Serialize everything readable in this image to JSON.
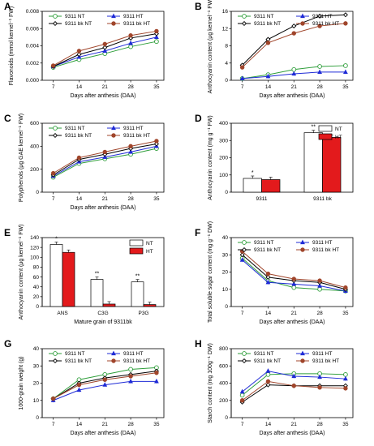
{
  "figure": {
    "panels": [
      {
        "id": "A",
        "type": "line",
        "ylabel": "Flavonoids (mmol kernel⁻¹ FW)",
        "xlabel": "Days after anthesis (DAA)",
        "x": [
          7,
          14,
          21,
          28,
          35
        ],
        "ylim": [
          0,
          0.008
        ],
        "yticks": [
          0,
          0.002,
          0.004,
          0.006,
          0.008
        ],
        "yticklabels": [
          "0.000",
          "0.002",
          "0.004",
          "0.006",
          "0.008"
        ],
        "series": [
          {
            "name": "9311 NT",
            "color": "#2e9e3a",
            "marker": "circle-open",
            "values": [
              0.0015,
              0.0024,
              0.0031,
              0.0039,
              0.0045
            ]
          },
          {
            "name": "9311 HT",
            "color": "#1f2bd6",
            "marker": "triangle",
            "values": [
              0.0016,
              0.0027,
              0.0034,
              0.0043,
              0.005
            ]
          },
          {
            "name": "9311 bk NT",
            "color": "#000000",
            "marker": "diamond-open",
            "values": [
              0.0016,
              0.003,
              0.0038,
              0.0049,
              0.0054
            ]
          },
          {
            "name": "9311 bk HT",
            "color": "#a0452b",
            "marker": "circle",
            "values": [
              0.0017,
              0.0034,
              0.0042,
              0.0052,
              0.0057
            ]
          }
        ]
      },
      {
        "id": "B",
        "type": "line",
        "ylabel": "Anthocyanin content (μg kernel⁻¹ FW)",
        "xlabel": "Days after anthesis (DAA)",
        "x": [
          7,
          14,
          21,
          28,
          35
        ],
        "ylim": [
          0,
          16
        ],
        "yticks": [
          0,
          4,
          8,
          12,
          16
        ],
        "yticklabels": [
          "0",
          "4",
          "8",
          "12",
          "16"
        ],
        "series": [
          {
            "name": "9311 NT",
            "color": "#2e9e3a",
            "marker": "circle-open",
            "values": [
              0.4,
              1.3,
              2.5,
              3.2,
              3.4
            ]
          },
          {
            "name": "9311 HT",
            "color": "#1f2bd6",
            "marker": "triangle",
            "values": [
              0.4,
              0.9,
              1.5,
              1.9,
              1.9
            ]
          },
          {
            "name": "9311 bk NT",
            "color": "#000000",
            "marker": "diamond-open",
            "values": [
              3.5,
              9.5,
              12.6,
              14.9,
              15.2
            ]
          },
          {
            "name": "9311 bk HT",
            "color": "#a0452b",
            "marker": "circle",
            "values": [
              3.0,
              8.7,
              10.9,
              12.6,
              13.2
            ]
          }
        ]
      },
      {
        "id": "C",
        "type": "line",
        "ylabel": "Polyphenols (μg GAE kernel⁻¹ FW)",
        "xlabel": "Days after anthesis (DAA)",
        "x": [
          7,
          14,
          21,
          28,
          35
        ],
        "ylim": [
          0,
          600
        ],
        "yticks": [
          0,
          200,
          400,
          600
        ],
        "yticklabels": [
          "0",
          "200",
          "400",
          "600"
        ],
        "series": [
          {
            "name": "9311 NT",
            "color": "#2e9e3a",
            "marker": "circle-open",
            "values": [
              130,
              250,
              290,
              330,
              380
            ]
          },
          {
            "name": "9311 HT",
            "color": "#1f2bd6",
            "marker": "triangle",
            "values": [
              140,
              265,
              305,
              350,
              400
            ]
          },
          {
            "name": "9311 bk NT",
            "color": "#000000",
            "marker": "diamond-open",
            "values": [
              150,
              285,
              330,
              380,
              420
            ]
          },
          {
            "name": "9311 bk HT",
            "color": "#a0452b",
            "marker": "circle",
            "values": [
              165,
              300,
              350,
              400,
              445
            ]
          }
        ]
      },
      {
        "id": "D",
        "type": "bar",
        "ylabel": "Anthocyanin content (mg g⁻¹ FW)",
        "categories": [
          "9311",
          "9311 bk"
        ],
        "ylim": [
          0,
          400
        ],
        "yticks": [
          0,
          100,
          200,
          300,
          400
        ],
        "yticklabels": [
          "0",
          "100",
          "200",
          "300",
          "400"
        ],
        "series": [
          {
            "name": "NT",
            "color": "#ffffff",
            "values": [
              80,
              345
            ]
          },
          {
            "name": "HT",
            "color": "#e31a1c",
            "values": [
              73,
              318
            ]
          }
        ],
        "annotations": [
          "*",
          "**"
        ]
      },
      {
        "id": "E",
        "type": "bar",
        "ylabel": "Anthocyanin content (μg kernel⁻¹ FW)",
        "xlabel": "Mature grain of 9311bk",
        "categories": [
          "ANS",
          "C3G",
          "P3G"
        ],
        "ylim": [
          0,
          140
        ],
        "yticks": [
          0,
          20,
          40,
          60,
          80,
          100,
          120,
          140
        ],
        "yticklabels": [
          "0",
          "20",
          "40",
          "60",
          "80",
          "100",
          "120",
          "140"
        ],
        "series": [
          {
            "name": "NT",
            "color": "#ffffff",
            "values": [
              126,
              55,
              50
            ]
          },
          {
            "name": "HT",
            "color": "#e31a1c",
            "values": [
              110,
              5,
              4
            ]
          }
        ],
        "annotations": [
          "*",
          "**",
          "**"
        ]
      },
      {
        "id": "F",
        "type": "line",
        "ylabel": "Total soluble sugar content (mg g⁻¹ DW)",
        "xlabel": "Days after anthesis (DAA)",
        "x": [
          7,
          14,
          21,
          28,
          35
        ],
        "ylim": [
          0,
          40
        ],
        "yticks": [
          0,
          10,
          20,
          30,
          40
        ],
        "yticklabels": [
          "0",
          "10",
          "20",
          "30",
          "40"
        ],
        "series": [
          {
            "name": "9311 NT",
            "color": "#2e9e3a",
            "marker": "circle-open",
            "values": [
              28,
              15,
              11,
              10,
              9
            ]
          },
          {
            "name": "9311 HT",
            "color": "#1f2bd6",
            "marker": "triangle",
            "values": [
              27,
              14,
              13,
              12,
              9
            ]
          },
          {
            "name": "9311 bk NT",
            "color": "#000000",
            "marker": "diamond-open",
            "values": [
              30,
              17,
              15,
              14,
              10
            ]
          },
          {
            "name": "9311 bk HT",
            "color": "#a0452b",
            "marker": "circle",
            "values": [
              32,
              19,
              16,
              15,
              11
            ]
          }
        ]
      },
      {
        "id": "G",
        "type": "line",
        "ylabel": "1000-grain weight (g)",
        "xlabel": "Days after anthesis (DAA)",
        "x": [
          7,
          14,
          21,
          28,
          35
        ],
        "ylim": [
          0,
          40
        ],
        "yticks": [
          0,
          10,
          20,
          30,
          40
        ],
        "yticklabels": [
          "0",
          "10",
          "20",
          "30",
          "40"
        ],
        "series": [
          {
            "name": "9311 NT",
            "color": "#2e9e3a",
            "marker": "circle-open",
            "values": [
              11,
              22,
              25,
              28,
              29
            ]
          },
          {
            "name": "9311 HT",
            "color": "#1f2bd6",
            "marker": "triangle",
            "values": [
              10,
              16,
              19,
              21,
              21
            ]
          },
          {
            "name": "9311 bk NT",
            "color": "#000000",
            "marker": "diamond-open",
            "values": [
              11,
              20,
              23,
              25,
              27
            ]
          },
          {
            "name": "9311 bk HT",
            "color": "#a0452b",
            "marker": "circle",
            "values": [
              11,
              19,
              22,
              24,
              26
            ]
          }
        ]
      },
      {
        "id": "H",
        "type": "line",
        "ylabel": "Starch content (mg 100g⁻¹ DW)",
        "xlabel": "Days after anthesis (DAA)",
        "x": [
          7,
          14,
          21,
          28,
          35
        ],
        "ylim": [
          0,
          800
        ],
        "yticks": [
          0,
          200,
          400,
          600,
          800
        ],
        "yticklabels": [
          "0",
          "200",
          "400",
          "600",
          "800"
        ],
        "series": [
          {
            "name": "9311 NT",
            "color": "#2e9e3a",
            "marker": "circle-open",
            "values": [
              260,
              500,
              510,
              510,
              500
            ]
          },
          {
            "name": "9311 HT",
            "color": "#1f2bd6",
            "marker": "triangle",
            "values": [
              300,
              540,
              480,
              470,
              450
            ]
          },
          {
            "name": "9311 bk NT",
            "color": "#000000",
            "marker": "diamond-open",
            "values": [
              180,
              380,
              370,
              370,
              370
            ]
          },
          {
            "name": "9311 bk HT",
            "color": "#a0452b",
            "marker": "circle",
            "values": [
              200,
              420,
              370,
              350,
              340
            ]
          }
        ]
      }
    ]
  }
}
